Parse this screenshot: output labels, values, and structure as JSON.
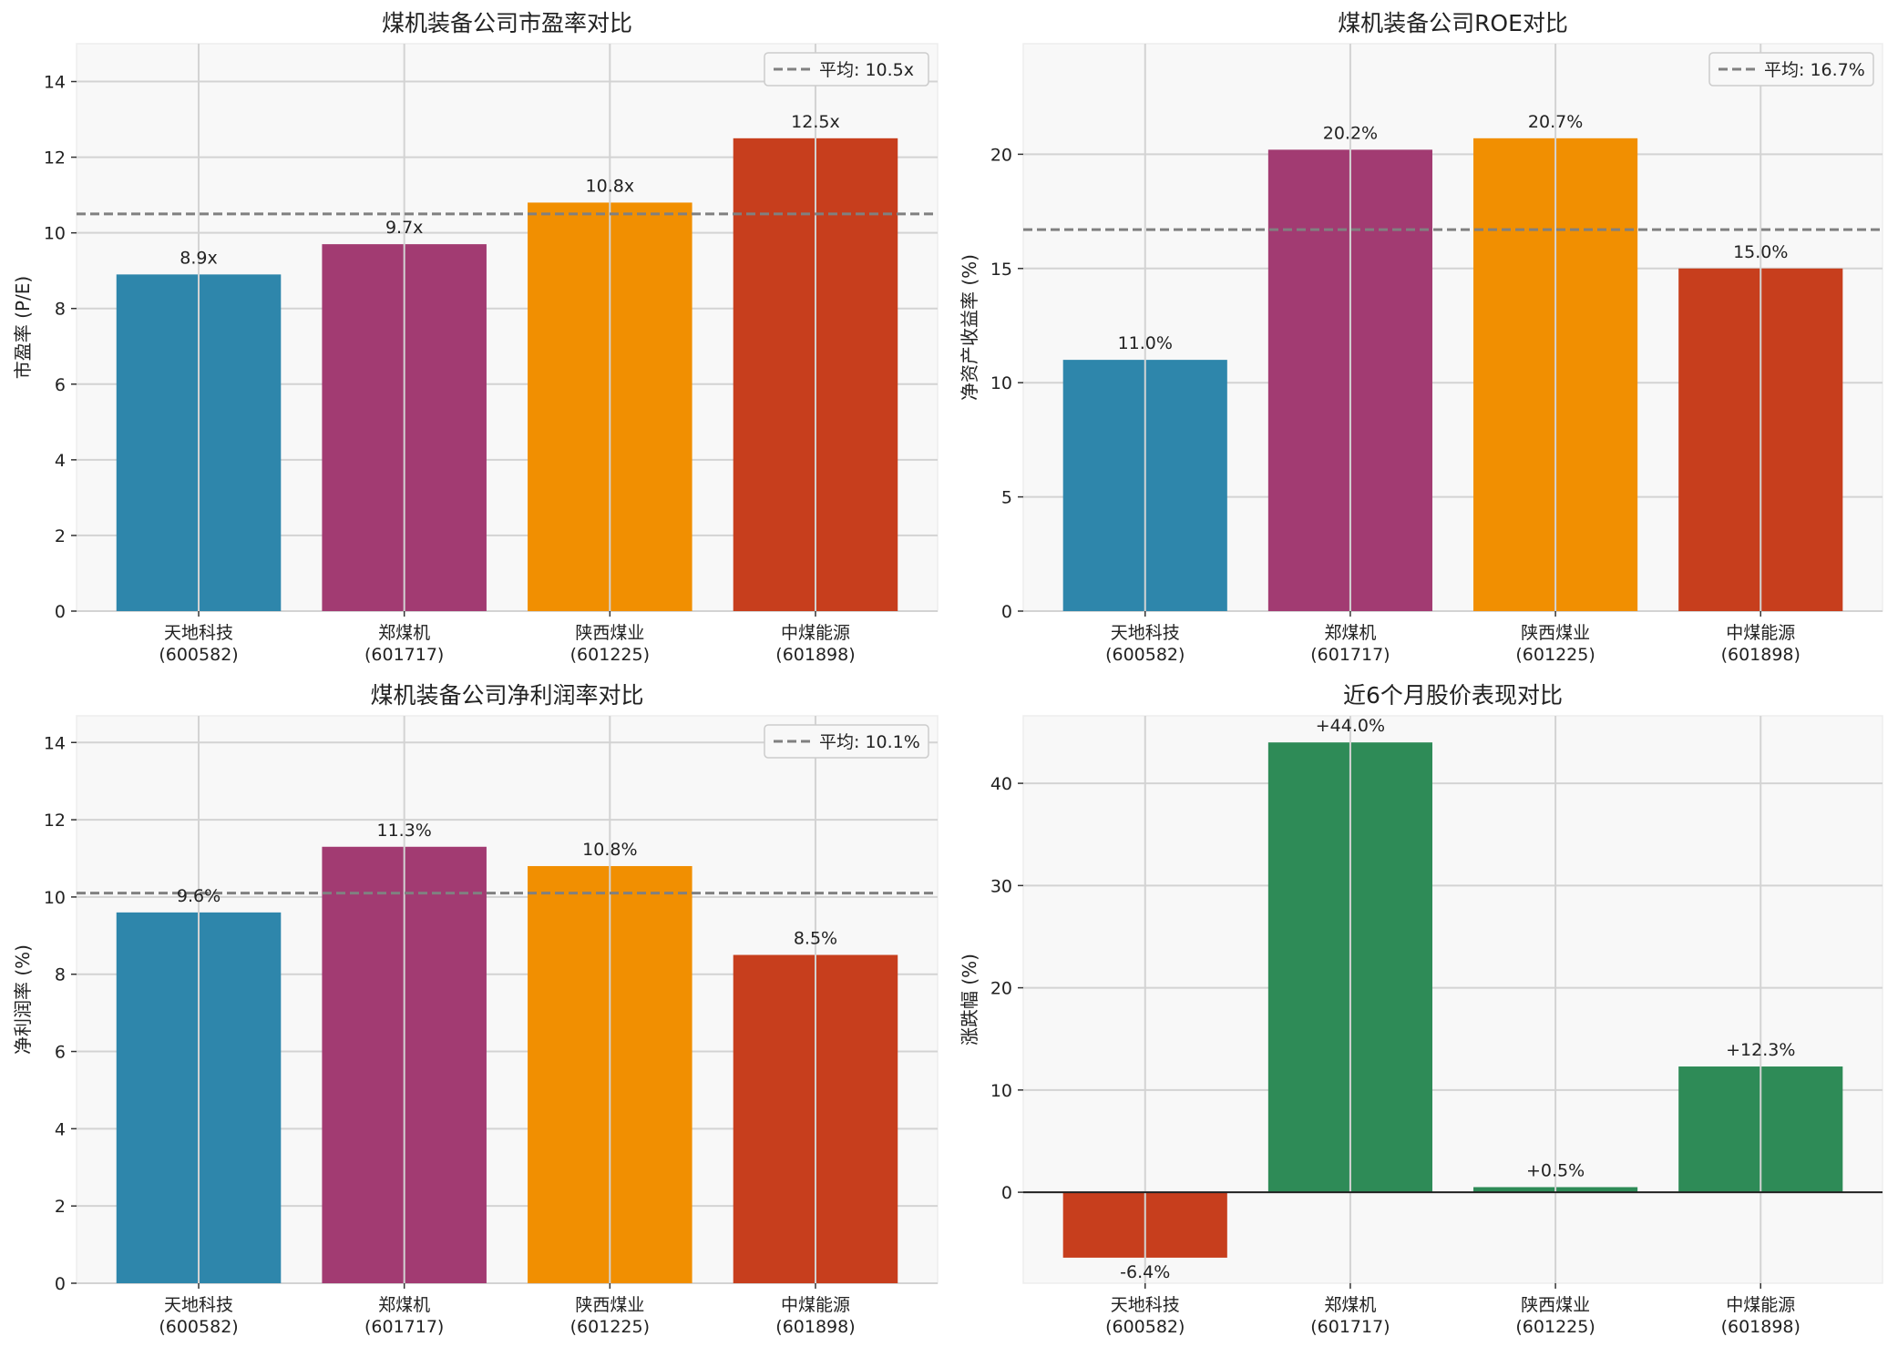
{
  "chart_data": [
    {
      "type": "bar",
      "title": "煤机装备公司市盈率对比",
      "ylabel": "市盈率 (P/E)",
      "xlabel": "",
      "categories": [
        "天地科技\n(600582)",
        "郑煤机\n(601717)",
        "陕西煤业\n(601225)",
        "中煤能源\n(601898)"
      ],
      "values": [
        8.9,
        9.7,
        10.8,
        12.5
      ],
      "data_labels": [
        "8.9x",
        "9.7x",
        "10.8x",
        "12.5x"
      ],
      "colors": [
        "#2E86AB",
        "#A23B72",
        "#F18F01",
        "#C73E1D"
      ],
      "ylim": [
        0,
        15
      ],
      "yticks": [
        0,
        2,
        4,
        6,
        8,
        10,
        12,
        14
      ],
      "average": 10.5,
      "legend": [
        "平均: 10.5x"
      ],
      "legend_position": "top-right",
      "grid": true
    },
    {
      "type": "bar",
      "title": "煤机装备公司ROE对比",
      "ylabel": "净资产收益率 (%)",
      "xlabel": "",
      "categories": [
        "天地科技\n(600582)",
        "郑煤机\n(601717)",
        "陕西煤业\n(601225)",
        "中煤能源\n(601898)"
      ],
      "values": [
        11.0,
        20.2,
        20.7,
        15.0
      ],
      "data_labels": [
        "11.0%",
        "20.2%",
        "20.7%",
        "15.0%"
      ],
      "colors": [
        "#2E86AB",
        "#A23B72",
        "#F18F01",
        "#C73E1D"
      ],
      "ylim": [
        0,
        24.84
      ],
      "yticks": [
        0,
        5,
        10,
        15,
        20
      ],
      "average": 16.7,
      "legend": [
        "平均: 16.7%"
      ],
      "legend_position": "top-right",
      "grid": true
    },
    {
      "type": "bar",
      "title": "煤机装备公司净利润率对比",
      "ylabel": "净利润率 (%)",
      "xlabel": "",
      "categories": [
        "天地科技\n(600582)",
        "郑煤机\n(601717)",
        "陕西煤业\n(601225)",
        "中煤能源\n(601898)"
      ],
      "values": [
        9.6,
        11.3,
        10.8,
        8.5
      ],
      "data_labels": [
        "9.6%",
        "11.3%",
        "10.8%",
        "8.5%"
      ],
      "colors": [
        "#2E86AB",
        "#A23B72",
        "#F18F01",
        "#C73E1D"
      ],
      "ylim": [
        0,
        14.69
      ],
      "yticks": [
        0,
        2,
        4,
        6,
        8,
        10,
        12,
        14
      ],
      "average": 10.1,
      "legend": [
        "平均: 10.1%"
      ],
      "legend_position": "top-right",
      "grid": true
    },
    {
      "type": "bar",
      "title": "近6个月股价表现对比",
      "ylabel": "涨跌幅 (%)",
      "xlabel": "",
      "categories": [
        "天地科技\n(600582)",
        "郑煤机\n(601717)",
        "陕西煤业\n(601225)",
        "中煤能源\n(601898)"
      ],
      "values": [
        -6.4,
        44.0,
        0.5,
        12.3
      ],
      "data_labels": [
        "-6.4%",
        "+44.0%",
        "+0.5%",
        "+12.3%"
      ],
      "colors": [
        "#C73E1D",
        "#2E8B57",
        "#2E8B57",
        "#2E8B57"
      ],
      "ylim": [
        -8.9,
        46.6
      ],
      "yticks": [
        0,
        10,
        20,
        30,
        40
      ],
      "zero_line": true,
      "grid": true
    }
  ]
}
